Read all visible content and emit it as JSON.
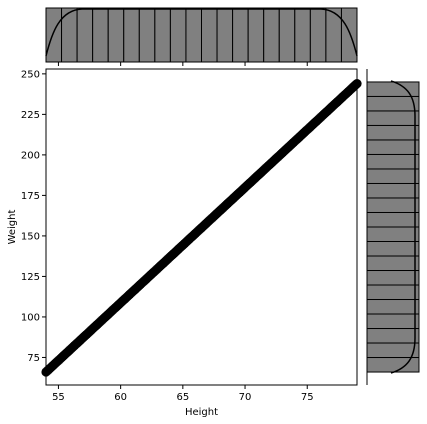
{
  "chart_data": {
    "type": "scatter",
    "subtype": "joint-plot",
    "title": "",
    "xlabel": "Height",
    "ylabel": "Weight",
    "xlim": [
      54,
      79
    ],
    "ylim": [
      58,
      253
    ],
    "xticks": [
      55,
      60,
      65,
      70,
      75
    ],
    "yticks": [
      75,
      100,
      125,
      150,
      175,
      200,
      225,
      250
    ],
    "grid": false,
    "series": [
      {
        "x_start": 54,
        "x_end": 79,
        "y_start": 66,
        "y_end": 244,
        "color": "#000000"
      }
    ],
    "marginal_x": {
      "type": "histogram",
      "bins": 20,
      "range": [
        54,
        79
      ],
      "bar_color": "#808080",
      "kde": true,
      "kde_color": "#000000"
    },
    "marginal_y": {
      "type": "histogram",
      "bins": 20,
      "range": [
        58,
        253
      ],
      "bar_color": "#808080",
      "kde": true,
      "kde_color": "#000000"
    }
  }
}
